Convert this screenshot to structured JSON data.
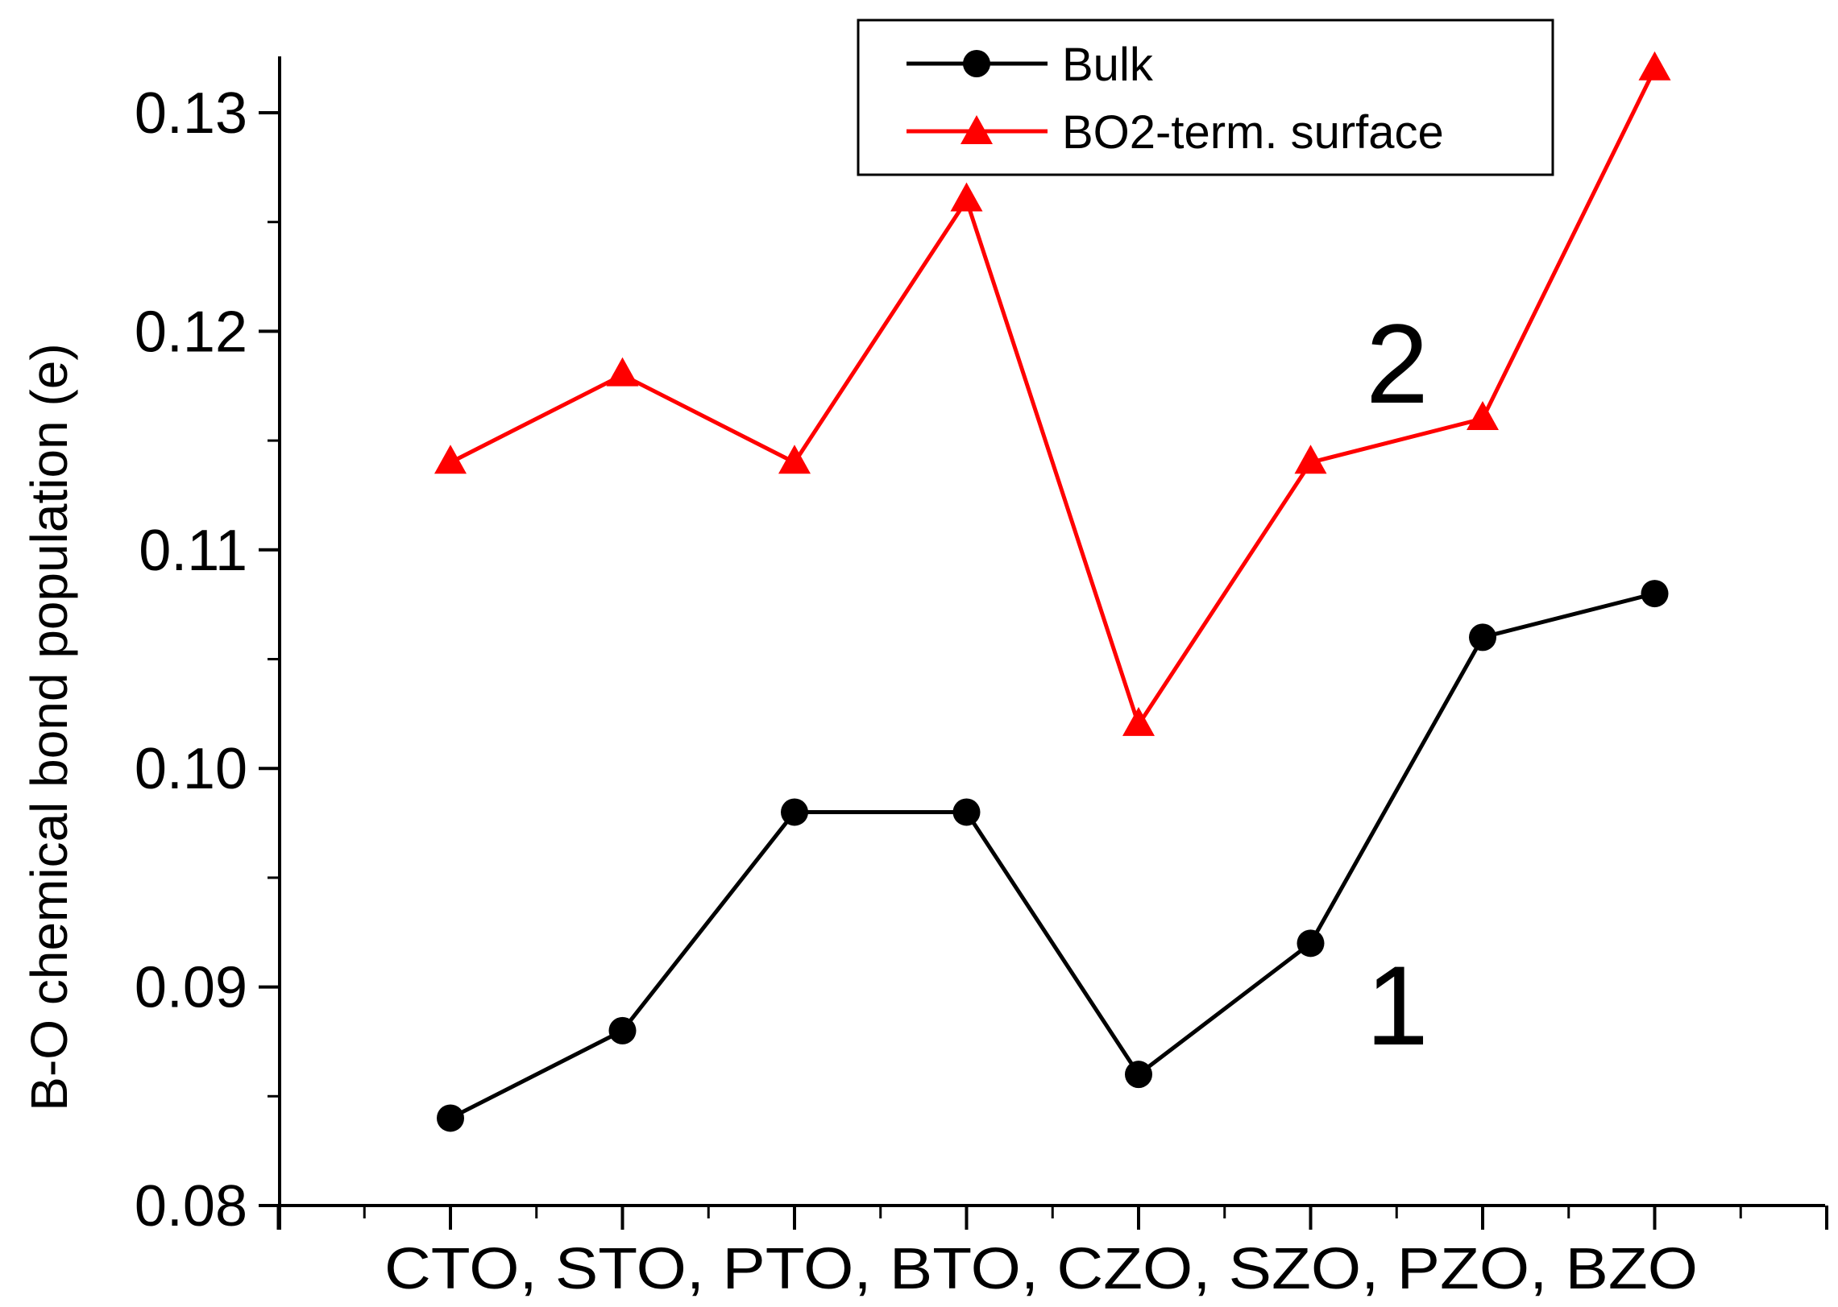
{
  "chart_data": {
    "type": "line",
    "title": "",
    "xlabel": "CTO, STO, PTO, BTO, CZO, SZO, PZO, BZO",
    "ylabel": "B-O chemical bond population (e)",
    "ylim": [
      0.08,
      0.135
    ],
    "y_major_ticks": [
      "0.08",
      "0.09",
      "0.10",
      "0.11",
      "0.12",
      "0.13"
    ],
    "categories": [
      "CTO",
      "STO",
      "PTO",
      "BTO",
      "CZO",
      "SZO",
      "PZO",
      "BZO"
    ],
    "series": [
      {
        "name": "Bulk",
        "color": "#000000",
        "marker": "circle",
        "values": [
          0.084,
          0.088,
          0.098,
          0.098,
          0.086,
          0.092,
          0.106,
          0.108
        ]
      },
      {
        "name": "BO2-term. surface",
        "color": "#ff0000",
        "marker": "triangle",
        "values": [
          0.114,
          0.118,
          0.114,
          0.126,
          0.102,
          0.114,
          0.116,
          0.132
        ]
      }
    ],
    "legend": {
      "position": "top-center"
    },
    "annotations": [
      {
        "text": "2",
        "near_series": "BO2-term. surface"
      },
      {
        "text": "1",
        "near_series": "Bulk"
      }
    ],
    "grid": false
  }
}
